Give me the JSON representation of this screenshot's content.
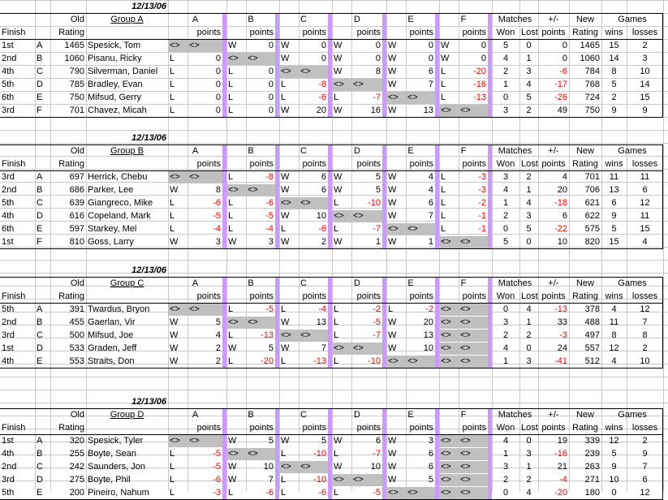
{
  "colors": {
    "separator": "#cc99ff",
    "shade": "#c0c0c0",
    "grid": "#c8c8c8",
    "negative": "#ff0000"
  },
  "labels": {
    "old": "Old",
    "rating": "Rating",
    "finish": "Finish",
    "opponents": [
      "A",
      "B",
      "C",
      "D",
      "E",
      "F"
    ],
    "points": "points",
    "matches": "Matches",
    "won": "Won",
    "lost": "Lost",
    "plusminus": "+/-",
    "plusminus_points": "points",
    "new": "New",
    "new_rating": "Rating",
    "games": "Games",
    "wins": "wins",
    "losses": "losses",
    "self_marker": "<>"
  },
  "groups": [
    {
      "date": "12/13/06",
      "name": "Group A",
      "players": [
        {
          "finish": "1st",
          "letter": "A",
          "old_rating": "1465",
          "name": "Spesick, Tom",
          "results": [
            [
              "<>",
              "<>"
            ],
            [
              "W",
              "0"
            ],
            [
              "W",
              "0"
            ],
            [
              "W",
              "0"
            ],
            [
              "W",
              "0"
            ],
            [
              "W",
              "0"
            ]
          ],
          "won": "5",
          "lost": "0",
          "plusminus": "0",
          "new_rating": "1465",
          "wins": "15",
          "losses": "2"
        },
        {
          "finish": "2nd",
          "letter": "B",
          "old_rating": "1060",
          "name": "Pisanu, Ricky",
          "results": [
            [
              "L",
              "0"
            ],
            [
              "<>",
              "<>"
            ],
            [
              "W",
              "0"
            ],
            [
              "W",
              "0"
            ],
            [
              "W",
              "0"
            ],
            [
              "W",
              "0"
            ]
          ],
          "won": "4",
          "lost": "1",
          "plusminus": "0",
          "new_rating": "1060",
          "wins": "14",
          "losses": "3"
        },
        {
          "finish": "4th",
          "letter": "C",
          "old_rating": "790",
          "name": "Silverman, Daniel",
          "results": [
            [
              "L",
              "0"
            ],
            [
              "L",
              "0"
            ],
            [
              "<>",
              "<>"
            ],
            [
              "W",
              "8"
            ],
            [
              "W",
              "6"
            ],
            [
              "L",
              "-20"
            ]
          ],
          "won": "2",
          "lost": "3",
          "plusminus": "-6",
          "new_rating": "784",
          "wins": "8",
          "losses": "10"
        },
        {
          "finish": "5th",
          "letter": "D",
          "old_rating": "785",
          "name": "Bradley, Evan",
          "results": [
            [
              "L",
              "0"
            ],
            [
              "L",
              "0"
            ],
            [
              "L",
              "-8"
            ],
            [
              "<>",
              "<>"
            ],
            [
              "W",
              "7"
            ],
            [
              "L",
              "-16"
            ]
          ],
          "won": "1",
          "lost": "4",
          "plusminus": "-17",
          "new_rating": "768",
          "wins": "5",
          "losses": "14"
        },
        {
          "finish": "6th",
          "letter": "E",
          "old_rating": "750",
          "name": "Mifsud, Gerry",
          "results": [
            [
              "L",
              "0"
            ],
            [
              "L",
              "0"
            ],
            [
              "L",
              "-6"
            ],
            [
              "L",
              "-7"
            ],
            [
              "<>",
              "<>"
            ],
            [
              "L",
              "-13"
            ]
          ],
          "won": "0",
          "lost": "5",
          "plusminus": "-26",
          "new_rating": "724",
          "wins": "2",
          "losses": "15"
        },
        {
          "finish": "3rd",
          "letter": "F",
          "old_rating": "701",
          "name": "Chavez, Micah",
          "results": [
            [
              "L",
              "0"
            ],
            [
              "L",
              "0"
            ],
            [
              "W",
              "20"
            ],
            [
              "W",
              "16"
            ],
            [
              "W",
              "13"
            ],
            [
              "<>",
              "<>"
            ]
          ],
          "won": "3",
          "lost": "2",
          "plusminus": "49",
          "new_rating": "750",
          "wins": "9",
          "losses": "9"
        }
      ]
    },
    {
      "date": "12/13/06",
      "name": "Group B",
      "players": [
        {
          "finish": "3rd",
          "letter": "A",
          "old_rating": "697",
          "name": "Herrick, Chebu",
          "results": [
            [
              "<>",
              "<>"
            ],
            [
              "L",
              "-8"
            ],
            [
              "W",
              "6"
            ],
            [
              "W",
              "5"
            ],
            [
              "W",
              "4"
            ],
            [
              "L",
              "-3"
            ]
          ],
          "won": "3",
          "lost": "2",
          "plusminus": "4",
          "new_rating": "701",
          "wins": "11",
          "losses": "11"
        },
        {
          "finish": "2nd",
          "letter": "B",
          "old_rating": "686",
          "name": "Parker, Lee",
          "results": [
            [
              "W",
              "8"
            ],
            [
              "<>",
              "<>"
            ],
            [
              "W",
              "6"
            ],
            [
              "W",
              "5"
            ],
            [
              "W",
              "4"
            ],
            [
              "L",
              "-3"
            ]
          ],
          "won": "4",
          "lost": "1",
          "plusminus": "20",
          "new_rating": "706",
          "wins": "13",
          "losses": "6"
        },
        {
          "finish": "5th",
          "letter": "C",
          "old_rating": "639",
          "name": "Giangreco, Mike",
          "results": [
            [
              "L",
              "-6"
            ],
            [
              "L",
              "-6"
            ],
            [
              "<>",
              "<>"
            ],
            [
              "L",
              "-10"
            ],
            [
              "W",
              "6"
            ],
            [
              "L",
              "-2"
            ]
          ],
          "won": "1",
          "lost": "4",
          "plusminus": "-18",
          "new_rating": "621",
          "wins": "6",
          "losses": "12"
        },
        {
          "finish": "4th",
          "letter": "D",
          "old_rating": "616",
          "name": "Copeland, Mark",
          "results": [
            [
              "L",
              "-5"
            ],
            [
              "L",
              "-5"
            ],
            [
              "W",
              "10"
            ],
            [
              "<>",
              "<>"
            ],
            [
              "W",
              "7"
            ],
            [
              "L",
              "-1"
            ]
          ],
          "won": "2",
          "lost": "3",
          "plusminus": "6",
          "new_rating": "622",
          "wins": "9",
          "losses": "11"
        },
        {
          "finish": "6th",
          "letter": "E",
          "old_rating": "597",
          "name": "Starkey, Mel",
          "results": [
            [
              "L",
              "-4"
            ],
            [
              "L",
              "-4"
            ],
            [
              "L",
              "-6"
            ],
            [
              "L",
              "-7"
            ],
            [
              "<>",
              "<>"
            ],
            [
              "L",
              "-1"
            ]
          ],
          "won": "0",
          "lost": "5",
          "plusminus": "-22",
          "new_rating": "575",
          "wins": "5",
          "losses": "15"
        },
        {
          "finish": "1st",
          "letter": "F",
          "old_rating": "810",
          "name": "Goss, Larry",
          "results": [
            [
              "W",
              "3"
            ],
            [
              "W",
              "3"
            ],
            [
              "W",
              "2"
            ],
            [
              "W",
              "1"
            ],
            [
              "W",
              "1"
            ],
            [
              "<>",
              "<>"
            ]
          ],
          "won": "5",
          "lost": "0",
          "plusminus": "10",
          "new_rating": "820",
          "wins": "15",
          "losses": "4"
        }
      ]
    },
    {
      "date": "12/13/06",
      "name": "Group C",
      "players": [
        {
          "finish": "5th",
          "letter": "A",
          "old_rating": "391",
          "name": "Twardus, Bryon",
          "results": [
            [
              "<>",
              "<>"
            ],
            [
              "L",
              "-5"
            ],
            [
              "L",
              "-4"
            ],
            [
              "L",
              "-2"
            ],
            [
              "L",
              "-2"
            ],
            [
              "<>",
              "<>"
            ]
          ],
          "won": "0",
          "lost": "4",
          "plusminus": "-13",
          "new_rating": "378",
          "wins": "4",
          "losses": "12"
        },
        {
          "finish": "2nd",
          "letter": "B",
          "old_rating": "455",
          "name": "Gaerlan, Vir",
          "results": [
            [
              "W",
              "5"
            ],
            [
              "<>",
              "<>"
            ],
            [
              "W",
              "13"
            ],
            [
              "L",
              "-5"
            ],
            [
              "W",
              "20"
            ],
            [
              "<>",
              "<>"
            ]
          ],
          "won": "3",
          "lost": "1",
          "plusminus": "33",
          "new_rating": "488",
          "wins": "11",
          "losses": "7"
        },
        {
          "finish": "3rd",
          "letter": "C",
          "old_rating": "500",
          "name": "Mifsud, Joe",
          "results": [
            [
              "W",
              "4"
            ],
            [
              "L",
              "-13"
            ],
            [
              "<>",
              "<>"
            ],
            [
              "L",
              "-7"
            ],
            [
              "W",
              "13"
            ],
            [
              "<>",
              "<>"
            ]
          ],
          "won": "2",
          "lost": "2",
          "plusminus": "-3",
          "new_rating": "497",
          "wins": "8",
          "losses": "8"
        },
        {
          "finish": "1st",
          "letter": "D",
          "old_rating": "533",
          "name": "Graden, Jeff",
          "results": [
            [
              "W",
              "2"
            ],
            [
              "W",
              "5"
            ],
            [
              "W",
              "7"
            ],
            [
              "<>",
              "<>"
            ],
            [
              "W",
              "10"
            ],
            [
              "<>",
              "<>"
            ]
          ],
          "won": "4",
          "lost": "0",
          "plusminus": "24",
          "new_rating": "557",
          "wins": "12",
          "losses": "2"
        },
        {
          "finish": "4th",
          "letter": "E",
          "old_rating": "553",
          "name": "Straits, Don",
          "results": [
            [
              "W",
              "2"
            ],
            [
              "L",
              "-20"
            ],
            [
              "L",
              "-13"
            ],
            [
              "L",
              "-10"
            ],
            [
              "<>",
              "<>"
            ],
            [
              "<>",
              "<>"
            ]
          ],
          "won": "1",
          "lost": "3",
          "plusminus": "-41",
          "new_rating": "512",
          "wins": "4",
          "losses": "10"
        }
      ]
    },
    {
      "date": "12/13/06",
      "name": "Group D",
      "players": [
        {
          "finish": "1st",
          "letter": "A",
          "old_rating": "320",
          "name": "Spesick, Tyler",
          "results": [
            [
              "<>",
              "<>"
            ],
            [
              "W",
              "5"
            ],
            [
              "W",
              "5"
            ],
            [
              "W",
              "6"
            ],
            [
              "W",
              "3"
            ],
            [
              "<>",
              "<>"
            ]
          ],
          "won": "4",
          "lost": "0",
          "plusminus": "19",
          "new_rating": "339",
          "wins": "12",
          "losses": "2"
        },
        {
          "finish": "4th",
          "letter": "B",
          "old_rating": "255",
          "name": "Boyte, Sean",
          "results": [
            [
              "L",
              "-5"
            ],
            [
              "<>",
              "<>"
            ],
            [
              "L",
              "-10"
            ],
            [
              "L",
              "-7"
            ],
            [
              "W",
              "6"
            ],
            [
              "<>",
              "<>"
            ]
          ],
          "won": "1",
          "lost": "3",
          "plusminus": "-16",
          "new_rating": "239",
          "wins": "5",
          "losses": "9"
        },
        {
          "finish": "2nd",
          "letter": "C",
          "old_rating": "242",
          "name": "Saunders, Jon",
          "results": [
            [
              "L",
              "-5"
            ],
            [
              "W",
              "10"
            ],
            [
              "<>",
              "<>"
            ],
            [
              "W",
              "10"
            ],
            [
              "W",
              "6"
            ],
            [
              "<>",
              "<>"
            ]
          ],
          "won": "3",
          "lost": "1",
          "plusminus": "21",
          "new_rating": "263",
          "wins": "9",
          "losses": "7"
        },
        {
          "finish": "3rd",
          "letter": "D",
          "old_rating": "275",
          "name": "Boyte, Phil",
          "results": [
            [
              "L",
              "-6"
            ],
            [
              "W",
              "7"
            ],
            [
              "L",
              "-10"
            ],
            [
              "<>",
              "<>"
            ],
            [
              "W",
              "5"
            ],
            [
              "<>",
              "<>"
            ]
          ],
          "won": "2",
          "lost": "2",
          "plusminus": "-4",
          "new_rating": "271",
          "wins": "10",
          "losses": "6"
        },
        {
          "finish": "5th",
          "letter": "E",
          "old_rating": "200",
          "name": "Pineiro, Nahum",
          "results": [
            [
              "L",
              "-3"
            ],
            [
              "L",
              "-6"
            ],
            [
              "L",
              "-6"
            ],
            [
              "L",
              "-5"
            ],
            [
              "<>",
              "<>"
            ],
            [
              "<>",
              "<>"
            ]
          ],
          "won": "0",
          "lost": "4",
          "plusminus": "-20",
          "new_rating": "180",
          "wins": "0",
          "losses": "12"
        }
      ]
    }
  ]
}
